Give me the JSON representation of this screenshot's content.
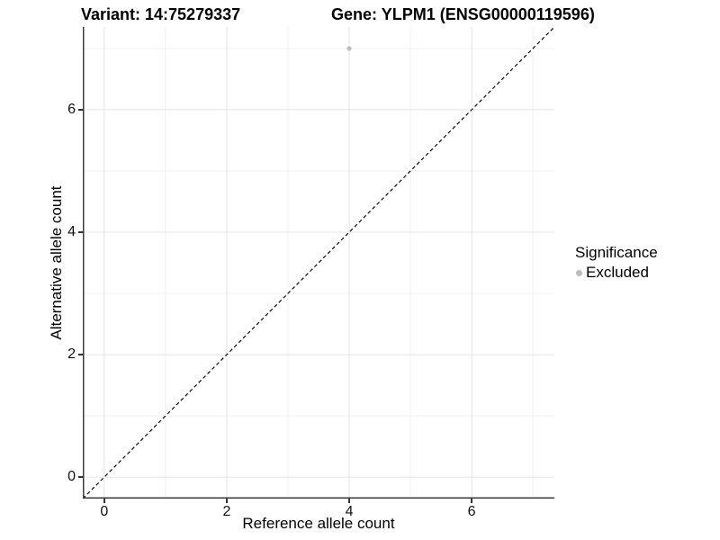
{
  "header": {
    "variant_title": "Variant: 14:75279337",
    "gene_title": "Gene: YLPM1 (ENSG00000119596)"
  },
  "legend": {
    "title": "Significance",
    "items": [
      {
        "label": "Excluded"
      }
    ]
  },
  "chart_data": {
    "type": "scatter",
    "title": "Variant: 14:75279337 | Gene: YLPM1 (ENSG00000119596)",
    "xlabel": "Reference allele count",
    "ylabel": "Alternative allele count",
    "xlim": [
      -0.35,
      7.35
    ],
    "ylim": [
      -0.35,
      7.35
    ],
    "x_major_ticks": [
      0,
      2,
      4,
      6
    ],
    "y_major_ticks": [
      0,
      2,
      4,
      6
    ],
    "x_minor_ticks": [
      1,
      3,
      5,
      7
    ],
    "y_minor_ticks": [
      1,
      3,
      5,
      7
    ],
    "grid": "on",
    "legend_position": "right",
    "series": [
      {
        "name": "Excluded",
        "color": "#bdbdbd",
        "points": [
          {
            "x": 4,
            "y": 7
          }
        ]
      }
    ],
    "reference_line": {
      "type": "identity y=x",
      "style": "dashed",
      "color": "#000000",
      "from": [
        -0.35,
        -0.35
      ],
      "to": [
        7.35,
        7.35
      ]
    }
  },
  "colors": {
    "background": "#ffffff",
    "grid_major": "#e4e4e4",
    "grid_minor": "#f1f1f1",
    "axis_line": "#3c3c3c",
    "point": "#bdbdbd"
  }
}
